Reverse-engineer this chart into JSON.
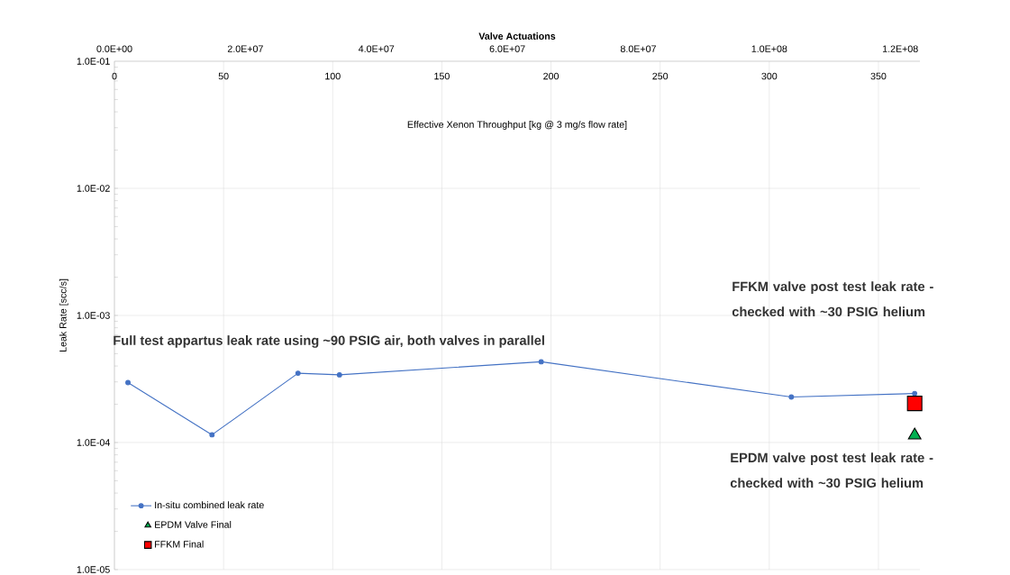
{
  "chart_data": {
    "type": "line",
    "xlabel": "Effective Xenon Throughput [kg @ 3 mg/s flow rate]",
    "x2label": "Valve Actuations",
    "ylabel": "Leak Rate [scc/s]",
    "xlim": [
      0,
      369
    ],
    "xticks": [
      0,
      50,
      100,
      150,
      200,
      250,
      300,
      350
    ],
    "x2lim": [
      0,
      123000000.0
    ],
    "x2ticks": [
      {
        "value": 0,
        "label": "0.0E+00"
      },
      {
        "value": 20000000.0,
        "label": "2.0E+07"
      },
      {
        "value": 40000000.0,
        "label": "4.0E+07"
      },
      {
        "value": 60000000.0,
        "label": "6.0E+07"
      },
      {
        "value": 80000000.0,
        "label": "8.0E+07"
      },
      {
        "value": 100000000.0,
        "label": "1.0E+08"
      },
      {
        "value": 120000000.0,
        "label": "1.2E+08"
      }
    ],
    "ylim": [
      1e-05,
      0.1
    ],
    "yticks": [
      {
        "value": 1e-05,
        "label": "1.0E-05"
      },
      {
        "value": 0.0001,
        "label": "1.0E-04"
      },
      {
        "value": 0.001,
        "label": "1.0E-03"
      },
      {
        "value": 0.01,
        "label": "1.0E-02"
      },
      {
        "value": 0.1,
        "label": "1.0E-01"
      }
    ],
    "log": "y",
    "grid": true,
    "legend": "bottom left",
    "series": [
      {
        "name": "In-situ combined leak rate",
        "color": "#4472c4",
        "marker": "circle",
        "x": [
          6.2,
          44.7,
          84.1,
          103.1,
          195.5,
          310.1,
          366.6
        ],
        "values": [
          0.000296,
          0.000115,
          0.000351,
          0.000341,
          0.000432,
          0.000228,
          0.000243
        ]
      },
      {
        "name": "EPDM Valve Final",
        "type": "scatter",
        "color": "#00b050",
        "marker": "triangle",
        "x": [
          366.6
        ],
        "values": [
          0.000114
        ]
      },
      {
        "name": "FFKM Final",
        "type": "scatter",
        "color": "#ff0000",
        "marker": "square",
        "x": [
          366.6
        ],
        "values": [
          0.000203
        ]
      }
    ],
    "annotations": [
      "Full test appartus leak rate using ~90 PSIG air, both valves in parallel",
      "FFKM valve post test leak rate - checked with ~30 PSIG helium",
      "EPDM valve post test leak rate - checked with ~30 PSIG helium"
    ]
  }
}
